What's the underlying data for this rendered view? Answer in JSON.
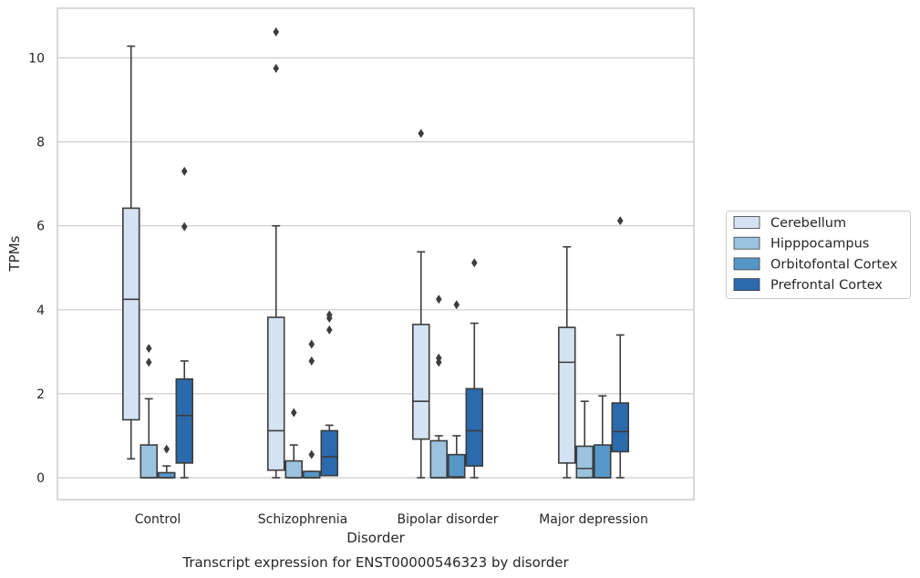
{
  "chart_data": {
    "type": "box",
    "title": "",
    "caption": "Transcript expression for ENST00000546323 by disorder",
    "xlabel": "Disorder",
    "ylabel": "TPMs",
    "ylim": [
      -0.5,
      11.2
    ],
    "yticks": [
      0,
      2,
      4,
      6,
      8,
      10
    ],
    "grid": true,
    "legend_position": "right",
    "categories": [
      "Control",
      "Schizophrenia",
      "Bipolar disorder",
      "Major depression"
    ],
    "series": [
      {
        "name": "Cerebellum",
        "color": "#d4e2f1",
        "boxes": [
          {
            "whislo": 0.45,
            "q1": 1.38,
            "med": 4.25,
            "q3": 6.42,
            "whishi": 10.28,
            "fliers": []
          },
          {
            "whislo": 0.0,
            "q1": 0.18,
            "med": 1.12,
            "q3": 3.82,
            "whishi": 6.0,
            "fliers": [
              9.75,
              10.62
            ]
          },
          {
            "whislo": 0.0,
            "q1": 0.92,
            "med": 1.82,
            "q3": 3.65,
            "whishi": 5.38,
            "fliers": [
              8.2
            ]
          },
          {
            "whislo": 0.0,
            "q1": 0.35,
            "med": 2.75,
            "q3": 3.58,
            "whishi": 5.5,
            "fliers": []
          }
        ]
      },
      {
        "name": "Hipppocampus",
        "color": "#9bc3df",
        "boxes": [
          {
            "whislo": 0.0,
            "q1": 0.0,
            "med": 0.0,
            "q3": 0.78,
            "whishi": 1.88,
            "fliers": [
              2.75,
              3.08
            ]
          },
          {
            "whislo": 0.0,
            "q1": 0.0,
            "med": 0.0,
            "q3": 0.4,
            "whishi": 0.78,
            "fliers": [
              1.55
            ]
          },
          {
            "whislo": 0.0,
            "q1": 0.0,
            "med": 0.0,
            "q3": 0.88,
            "whishi": 1.0,
            "fliers": [
              2.75,
              2.85,
              4.25
            ]
          },
          {
            "whislo": 0.0,
            "q1": 0.0,
            "med": 0.22,
            "q3": 0.75,
            "whishi": 1.82,
            "fliers": []
          }
        ]
      },
      {
        "name": "Orbitofontal Cortex",
        "color": "#5597c7",
        "boxes": [
          {
            "whislo": 0.0,
            "q1": 0.0,
            "med": 0.0,
            "q3": 0.12,
            "whishi": 0.28,
            "fliers": [
              0.68
            ]
          },
          {
            "whislo": 0.0,
            "q1": 0.0,
            "med": 0.0,
            "q3": 0.15,
            "whishi": 0.15,
            "fliers": [
              0.55,
              2.78,
              3.18
            ]
          },
          {
            "whislo": 0.0,
            "q1": 0.0,
            "med": 0.02,
            "q3": 0.55,
            "whishi": 1.0,
            "fliers": [
              4.12
            ]
          },
          {
            "whislo": 0.0,
            "q1": 0.0,
            "med": 0.0,
            "q3": 0.78,
            "whishi": 1.95,
            "fliers": []
          }
        ]
      },
      {
        "name": "Prefrontal Cortex",
        "color": "#2a6aad",
        "boxes": [
          {
            "whislo": 0.0,
            "q1": 0.35,
            "med": 1.48,
            "q3": 2.35,
            "whishi": 2.78,
            "fliers": [
              5.98,
              7.3
            ]
          },
          {
            "whislo": 0.05,
            "q1": 0.05,
            "med": 0.5,
            "q3": 1.12,
            "whishi": 1.25,
            "fliers": [
              3.52,
              3.8,
              3.88
            ]
          },
          {
            "whislo": 0.0,
            "q1": 0.28,
            "med": 1.12,
            "q3": 2.12,
            "whishi": 3.68,
            "fliers": [
              5.12
            ]
          },
          {
            "whislo": 0.0,
            "q1": 0.62,
            "med": 1.1,
            "q3": 1.78,
            "whishi": 3.4,
            "fliers": [
              6.12
            ]
          }
        ]
      }
    ]
  }
}
